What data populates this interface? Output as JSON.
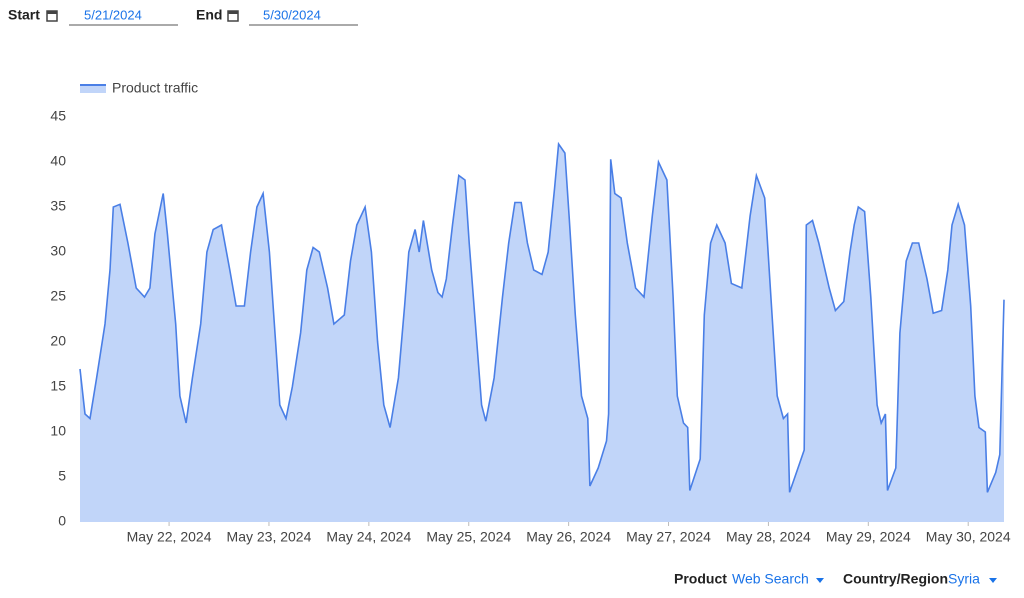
{
  "filters": {
    "start_label": "Start",
    "start_date": "5/21/2024",
    "end_label": "End",
    "end_date": "5/30/2024"
  },
  "chart_data": {
    "type": "area",
    "x": [
      0,
      1.2,
      2.4,
      4,
      6,
      7.2,
      8,
      9.6,
      11.5,
      13.5,
      15.5,
      16.8,
      18,
      20,
      21,
      23,
      24,
      25.5,
      27,
      29,
      30.5,
      32,
      34,
      36,
      37.5,
      39.5,
      41,
      42.5,
      44,
      45.5,
      47,
      48,
      49.5,
      51,
      53,
      54.5,
      56,
      57.5,
      59.5,
      61,
      63.5,
      65,
      66.5,
      68.5,
      70,
      71.5,
      73,
      74.5,
      76.5,
      78,
      79,
      80.5,
      81.5,
      82.5,
      84.5,
      86,
      87,
      88,
      89.5,
      91,
      92.5,
      93.5,
      95,
      96.5,
      97.5,
      99.5,
      101.5,
      103,
      104.5,
      106,
      107.5,
      109,
      111,
      112.5,
      114,
      115,
      116.5,
      117.5,
      119,
      120.5,
      122,
      122.5,
      124.5,
      126.5,
      127,
      127.5,
      128.5,
      130,
      131.5,
      133.5,
      135.5,
      137.5,
      139,
      141,
      142.5,
      143.5,
      145,
      146,
      146.5,
      149,
      150,
      151.5,
      153,
      155,
      156.5,
      159,
      161,
      162.5,
      164.5,
      166,
      167.5,
      169,
      170,
      170.5,
      172.5,
      174,
      174.5,
      176,
      177.5,
      180,
      181.5,
      183.5,
      185,
      186,
      187,
      188.5,
      190,
      191.5,
      192.5,
      193.5,
      194,
      196,
      197,
      198.5,
      200,
      201.5,
      203.5,
      205,
      207,
      208.5,
      209.5,
      211,
      212.5,
      214,
      215,
      216,
      217.5,
      218,
      220,
      221,
      222
    ],
    "series": [
      {
        "name": "Product traffic",
        "color": "#4a7fe6",
        "fill": "#c1d5f9",
        "values": [
          17,
          12,
          11.5,
          16,
          22,
          28,
          35,
          35.3,
          31,
          26,
          25,
          26,
          32,
          36.5,
          32,
          22,
          14,
          11,
          16,
          22,
          30,
          32.5,
          33,
          28,
          24,
          24,
          30,
          35,
          36.5,
          30,
          20,
          13,
          11.5,
          15,
          21,
          28,
          30.5,
          30,
          26,
          22,
          23,
          29,
          33,
          35,
          30,
          20,
          13,
          10.5,
          16,
          24,
          30,
          32.5,
          30,
          33.5,
          28,
          25.5,
          25,
          27,
          33,
          38.5,
          38,
          31,
          22,
          13,
          11.2,
          16,
          25,
          31,
          35.5,
          35.5,
          31,
          28,
          27.5,
          30,
          37,
          42,
          41,
          34,
          23,
          14,
          11.5,
          4,
          6,
          9,
          12,
          40.3,
          36.5,
          36,
          31,
          26,
          25,
          34,
          40,
          38,
          25,
          14,
          11,
          10.5,
          3.5,
          7,
          23,
          31,
          33,
          31,
          26.5,
          26,
          34,
          38.5,
          36,
          25,
          14,
          11.5,
          12,
          3.3,
          6,
          8,
          33,
          33.5,
          31,
          26,
          23.5,
          24.5,
          30,
          33,
          35,
          34.5,
          25,
          13,
          11,
          12,
          3.5,
          6,
          21,
          29,
          31,
          31,
          27,
          23.2,
          23.5,
          28,
          33,
          35.3,
          33,
          24,
          14,
          10.5,
          10,
          3.3,
          5.5,
          7.5,
          24.7
        ]
      }
    ],
    "xlim": [
      0,
      222
    ],
    "xticks": [
      {
        "value": 21.4,
        "label": "May 22, 2024"
      },
      {
        "value": 45.4,
        "label": "May 23, 2024"
      },
      {
        "value": 69.4,
        "label": "May 24, 2024"
      },
      {
        "value": 93.4,
        "label": "May 25, 2024"
      },
      {
        "value": 117.4,
        "label": "May 26, 2024"
      },
      {
        "value": 141.4,
        "label": "May 27, 2024"
      },
      {
        "value": 165.4,
        "label": "May 28, 2024"
      },
      {
        "value": 189.4,
        "label": "May 29, 2024"
      },
      {
        "value": 213.4,
        "label": "May 30, 2024"
      }
    ],
    "ylim": [
      0,
      45
    ],
    "yticks": [
      0,
      5,
      10,
      15,
      20,
      25,
      30,
      35,
      40,
      45
    ],
    "legend": "top-left"
  },
  "controls": {
    "product_label": "Product",
    "product_value": "Web Search",
    "region_label": "Country/Region",
    "region_value": "Syria"
  }
}
